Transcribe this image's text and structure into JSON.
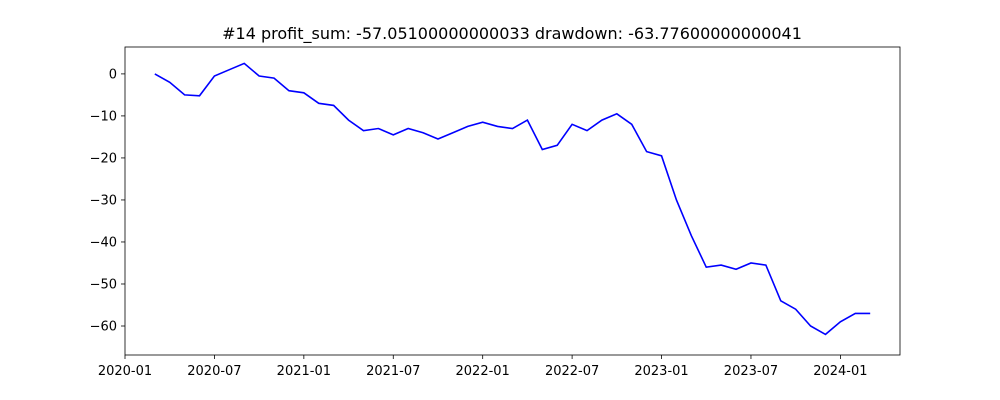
{
  "chart_data": {
    "type": "line",
    "title": "#14   profit_sum: -57.05100000000033 drawdown: -63.77600000000041",
    "x": [
      "2020-03",
      "2020-04",
      "2020-05",
      "2020-06",
      "2020-07",
      "2020-08",
      "2020-09",
      "2020-10",
      "2020-11",
      "2020-12",
      "2021-01",
      "2021-02",
      "2021-03",
      "2021-04",
      "2021-05",
      "2021-06",
      "2021-07",
      "2021-08",
      "2021-09",
      "2021-10",
      "2021-11",
      "2021-12",
      "2022-01",
      "2022-02",
      "2022-03",
      "2022-04",
      "2022-05",
      "2022-06",
      "2022-07",
      "2022-08",
      "2022-09",
      "2022-10",
      "2022-11",
      "2022-12",
      "2023-01",
      "2023-02",
      "2023-03",
      "2023-04",
      "2023-05",
      "2023-06",
      "2023-07",
      "2023-08",
      "2023-09",
      "2023-10",
      "2023-11",
      "2023-12",
      "2024-01",
      "2024-02",
      "2024-03"
    ],
    "series": [
      {
        "color": "#0000ff",
        "values": [
          0,
          -2,
          -5,
          -5.2,
          -0.5,
          1,
          2.5,
          -0.5,
          -1,
          -4,
          -4.5,
          -7,
          -7.5,
          -11,
          -13.5,
          -13,
          -14.5,
          -13,
          -14,
          -15.5,
          -14,
          -12.5,
          -11.5,
          -12.5,
          -13,
          -11,
          -18,
          -17,
          -12,
          -13.5,
          -11,
          -9.5,
          -12,
          -18.5,
          -19.5,
          -30,
          -38.5,
          -46,
          -45.5,
          -46.5,
          -45,
          -45.5,
          -54,
          -56,
          -60,
          -62,
          -59,
          -57,
          -57
        ]
      }
    ],
    "xlim": [
      "2020-01",
      "2024-05"
    ],
    "xticks": [
      "2020-01",
      "2020-07",
      "2021-01",
      "2021-07",
      "2022-01",
      "2022-07",
      "2023-01",
      "2023-07",
      "2024-01"
    ],
    "ylim": [
      -66.9,
      6.4
    ],
    "yticks": [
      {
        "value": 0,
        "label": "0"
      },
      {
        "value": -10,
        "label": "−10"
      },
      {
        "value": -20,
        "label": "−20"
      },
      {
        "value": -30,
        "label": "−30"
      },
      {
        "value": -40,
        "label": "−40"
      },
      {
        "value": -50,
        "label": "−50"
      },
      {
        "value": -60,
        "label": "−60"
      }
    ]
  }
}
